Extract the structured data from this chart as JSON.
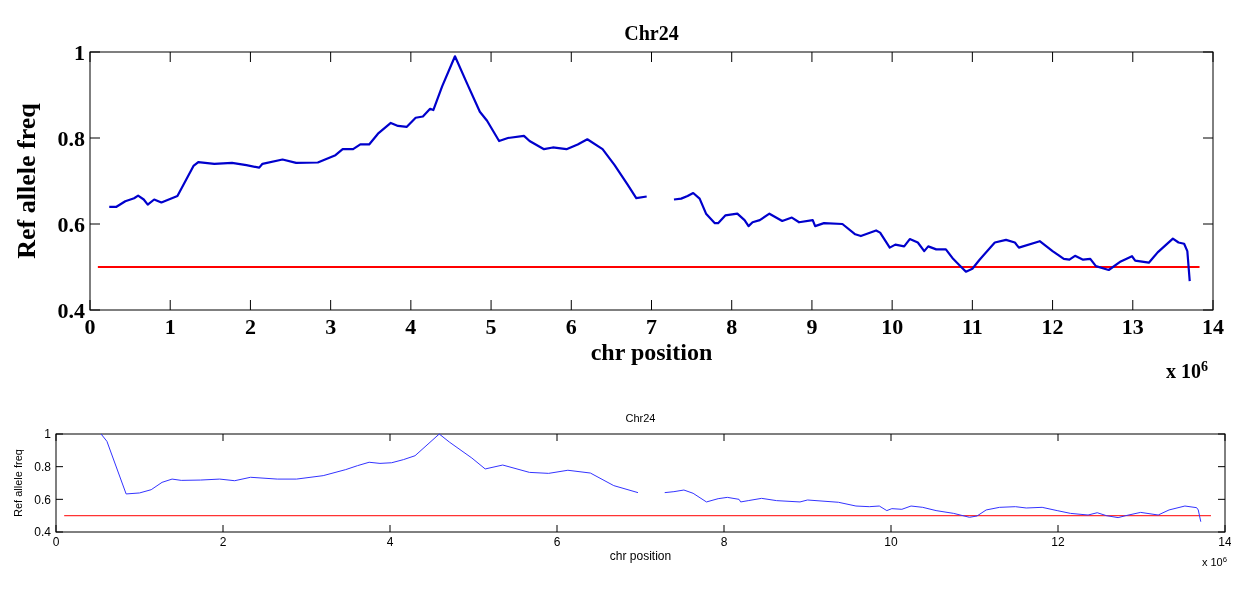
{
  "chart_data": [
    {
      "type": "line",
      "title": "Chr24",
      "xlabel": "chr position",
      "ylabel": "Ref allele freq",
      "annotations": [
        "x 10$^{6}$"
      ],
      "xlim": [
        0,
        14
      ],
      "ylim": [
        0.4,
        1
      ],
      "xticks": [
        0,
        1,
        2,
        3,
        4,
        5,
        6,
        7,
        8,
        9,
        10,
        11,
        12,
        13,
        14
      ],
      "yticks": [
        0.4,
        0.6,
        0.8,
        1
      ],
      "grid": false,
      "line_style": "solid",
      "marker": "none",
      "ref_lines": [
        {
          "axis": "y",
          "value": 0.5,
          "color": "#ff0000"
        }
      ],
      "series": [
        {
          "color": "#0000cc",
          "x": [
            0.24,
            0.33,
            0.44,
            0.55,
            0.6,
            0.67,
            0.72,
            0.8,
            0.89,
            1.09,
            1.29,
            1.35,
            1.55,
            1.77,
            1.95,
            2.11,
            2.15,
            2.4,
            2.57,
            2.84,
            3.06,
            3.15,
            3.28,
            3.37,
            3.48,
            3.59,
            3.75,
            3.84,
            3.95,
            4.06,
            4.15,
            4.24,
            4.28,
            4.39,
            4.55,
            4.7,
            4.86,
            4.95,
            5.1,
            5.21,
            5.41,
            5.48,
            5.66,
            5.77,
            5.94,
            6.08,
            6.2,
            6.39,
            6.54,
            6.7,
            6.81,
            6.94,
            7.1,
            7.28,
            7.37,
            7.45,
            7.52,
            7.6,
            7.68,
            7.79,
            7.83,
            7.92,
            8.07,
            8.16,
            8.21,
            8.26,
            8.35,
            8.47,
            8.63,
            8.75,
            8.84,
            9.01,
            9.04,
            9.15,
            9.38,
            9.54,
            9.61,
            9.8,
            9.85,
            9.97,
            10.04,
            10.15,
            10.22,
            10.32,
            10.4,
            10.45,
            10.55,
            10.67,
            10.76,
            10.83,
            10.92,
            11,
            11.09,
            11.28,
            11.42,
            11.53,
            11.58,
            11.84,
            12,
            12.14,
            12.21,
            12.28,
            12.38,
            12.47,
            12.54,
            12.7,
            12.85,
            12.99,
            13.03,
            13.2,
            13.31,
            13.5,
            13.57,
            13.64,
            13.68,
            13.71
          ],
          "values": [
            0.64,
            0.64,
            0.653,
            0.66,
            0.666,
            0.657,
            0.645,
            0.657,
            0.65,
            0.665,
            0.735,
            0.744,
            0.74,
            0.742,
            0.737,
            0.731,
            0.74,
            0.75,
            0.742,
            0.743,
            0.76,
            0.774,
            0.774,
            0.785,
            0.785,
            0.81,
            0.835,
            0.828,
            0.826,
            0.847,
            0.85,
            0.868,
            0.865,
            0.92,
            0.99,
            0.927,
            0.861,
            0.84,
            0.793,
            0.8,
            0.805,
            0.793,
            0.774,
            0.778,
            0.774,
            0.785,
            0.797,
            0.774,
            0.737,
            0.692,
            0.66,
            0.664,
            null,
            0.657,
            0.659,
            0.665,
            0.672,
            0.659,
            0.624,
            0.602,
            0.602,
            0.62,
            0.624,
            0.609,
            0.595,
            0.604,
            0.609,
            0.624,
            0.607,
            0.615,
            0.604,
            0.609,
            0.595,
            0.602,
            0.6,
            0.576,
            0.572,
            0.585,
            0.58,
            0.545,
            0.552,
            0.548,
            0.565,
            0.557,
            0.537,
            0.548,
            0.541,
            0.541,
            0.519,
            0.506,
            0.489,
            0.496,
            0.517,
            0.557,
            0.563,
            0.557,
            0.545,
            0.56,
            0.537,
            0.519,
            0.517,
            0.526,
            0.517,
            0.519,
            0.502,
            0.493,
            0.513,
            0.525,
            0.515,
            0.51,
            0.534,
            0.566,
            0.557,
            0.554,
            0.537,
            0.467
          ]
        }
      ]
    },
    {
      "type": "line",
      "title": "Chr24",
      "xlabel": "chr position",
      "ylabel": "Ref allele freq",
      "annotations": [
        "x 10$^{6}$"
      ],
      "xlim": [
        0,
        14
      ],
      "ylim": [
        0.4,
        1
      ],
      "xticks": [
        0,
        2,
        4,
        6,
        8,
        10,
        12,
        14
      ],
      "yticks": [
        0.4,
        0.6,
        0.8,
        1
      ],
      "grid": false,
      "line_style": "solid",
      "marker": "none",
      "ref_lines": [
        {
          "axis": "y",
          "value": 0.5,
          "color": "#ff3333"
        }
      ],
      "series": [
        {
          "color": "#3333ff",
          "x": [
            0.54,
            0.61,
            0.84,
            1,
            1.14,
            1.27,
            1.39,
            1.5,
            1.73,
            1.96,
            2.14,
            2.33,
            2.65,
            2.88,
            3.2,
            3.47,
            3.61,
            3.75,
            3.88,
            4.02,
            4.16,
            4.3,
            4.59,
            4.71,
            4.98,
            5.14,
            5.35,
            5.67,
            5.9,
            6.13,
            6.4,
            6.68,
            6.97,
            7.1,
            7.29,
            7.4,
            7.52,
            7.63,
            7.79,
            7.93,
            8.04,
            8.18,
            8.2,
            8.29,
            8.45,
            8.63,
            8.91,
            9,
            9.37,
            9.58,
            9.74,
            9.86,
            9.95,
            10.01,
            10.13,
            10.24,
            10.38,
            10.54,
            10.75,
            10.94,
            11.03,
            11.14,
            11.3,
            11.49,
            11.62,
            11.81,
            11.99,
            12.15,
            12.36,
            12.47,
            12.58,
            12.72,
            12.81,
            12.99,
            13.2,
            13.33,
            13.52,
            13.66,
            13.68,
            13.71
          ],
          "values": [
            1,
            0.955,
            0.633,
            0.639,
            0.659,
            0.704,
            0.724,
            0.716,
            0.718,
            0.724,
            0.714,
            0.735,
            0.724,
            0.724,
            0.745,
            0.782,
            0.806,
            0.827,
            0.82,
            0.824,
            0.843,
            0.867,
            1,
            0.951,
            0.853,
            0.786,
            0.81,
            0.765,
            0.759,
            0.778,
            0.761,
            0.684,
            0.641,
            null,
            0.641,
            0.647,
            0.657,
            0.637,
            0.584,
            0.604,
            0.612,
            0.6,
            0.584,
            0.592,
            0.606,
            0.592,
            0.584,
            0.596,
            0.582,
            0.559,
            0.555,
            0.559,
            0.531,
            0.543,
            0.539,
            0.559,
            0.551,
            0.531,
            0.514,
            0.49,
            0.498,
            0.535,
            0.551,
            0.555,
            0.547,
            0.551,
            0.531,
            0.514,
            0.504,
            0.518,
            0.5,
            0.488,
            0.5,
            0.52,
            0.504,
            0.535,
            0.559,
            0.549,
            0.535,
            0.463
          ]
        }
      ]
    }
  ]
}
